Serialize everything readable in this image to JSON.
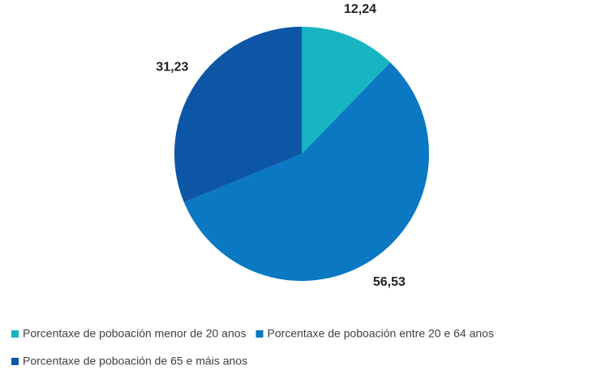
{
  "chart_data": {
    "type": "pie",
    "categories": [
      "Porcentaxe de poboación menor de 20 anos",
      "Porcentaxe de poboación entre 20 e 64 anos",
      "Porcentaxe de poboación de 65 e máis anos"
    ],
    "values": [
      12.24,
      56.53,
      31.23
    ],
    "value_labels": [
      "12,24",
      "56,53",
      "31,23"
    ],
    "colors": [
      "#17b5c1",
      "#0a78c2",
      "#0d56a5"
    ],
    "legend": "bottom"
  }
}
